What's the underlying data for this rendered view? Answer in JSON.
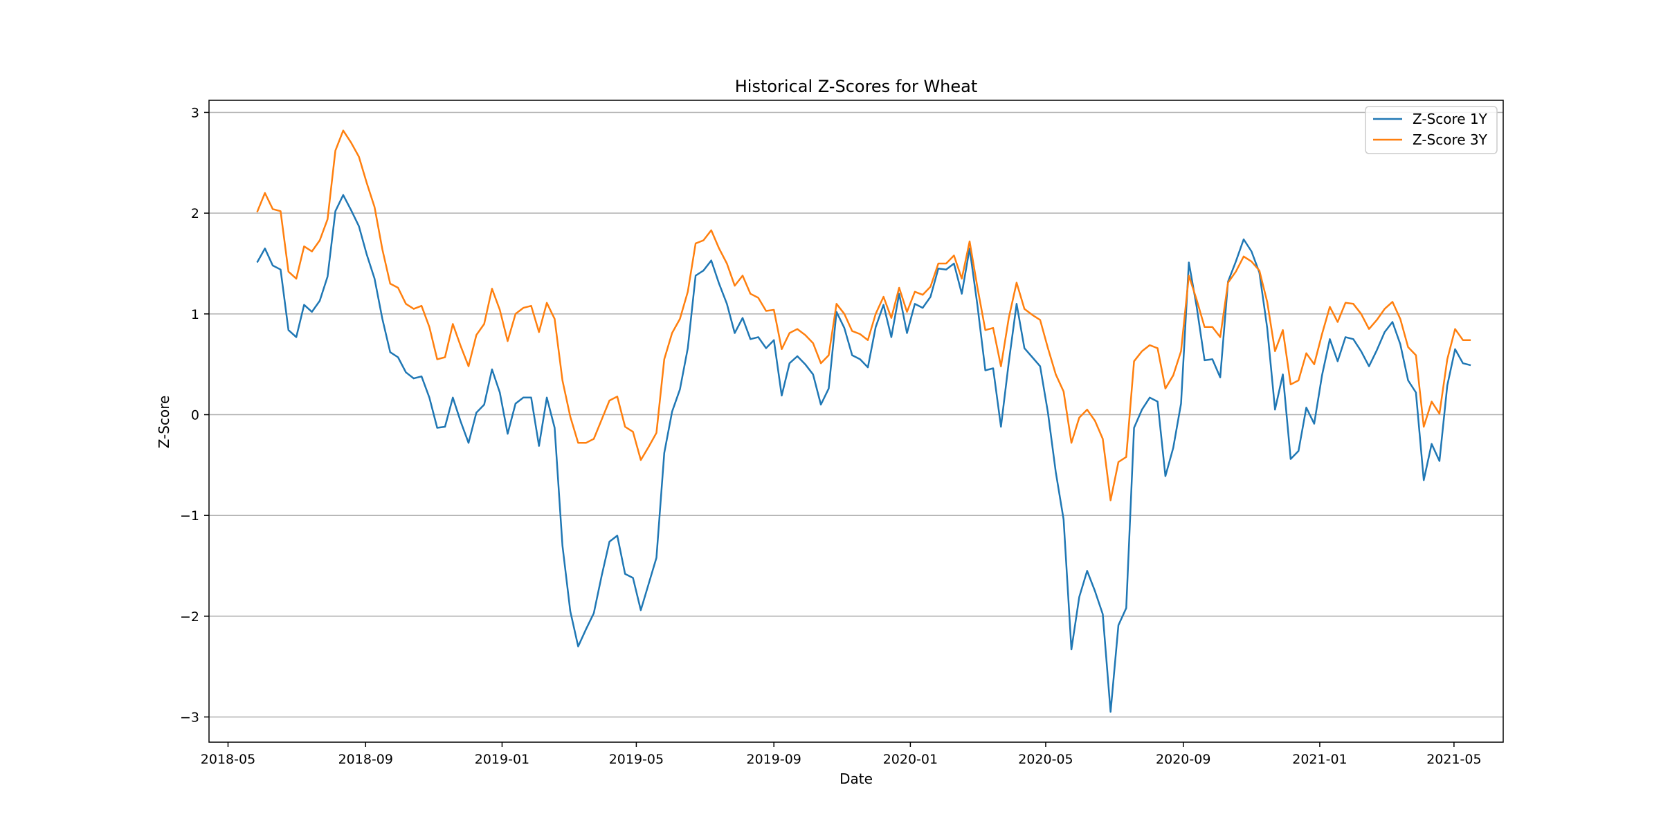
{
  "chart_data": {
    "type": "line",
    "title": "Historical Z-Scores for Wheat",
    "xlabel": "Date",
    "ylabel": "Z-Score",
    "xlim": [
      "2018-04-14",
      "2021-06-14"
    ],
    "ylim": [
      -3.25,
      3.12
    ],
    "x_ticks": [
      "2018-05",
      "2018-09",
      "2019-01",
      "2019-05",
      "2019-09",
      "2020-01",
      "2020-05",
      "2020-09",
      "2021-01",
      "2021-05"
    ],
    "y_ticks": [
      {
        "value": -3,
        "label": "−3"
      },
      {
        "value": -2,
        "label": "−2"
      },
      {
        "value": -1,
        "label": "−1"
      },
      {
        "value": 0,
        "label": "0"
      },
      {
        "value": 1,
        "label": "1"
      },
      {
        "value": 2,
        "label": "2"
      },
      {
        "value": 3,
        "label": "3"
      }
    ],
    "grid": "y",
    "legend": "top-right",
    "x_start": "2018-05-27",
    "x_step_days": 7,
    "series": [
      {
        "name": "Z-Score 1Y",
        "color": "#1f77b4",
        "values": [
          1.51,
          1.65,
          1.48,
          1.44,
          0.84,
          0.77,
          1.09,
          1.02,
          1.13,
          1.37,
          2.02,
          2.18,
          2.03,
          1.87,
          1.59,
          1.35,
          0.95,
          0.62,
          0.57,
          0.42,
          0.36,
          0.38,
          0.17,
          -0.13,
          -0.12,
          0.17,
          -0.07,
          -0.28,
          0.02,
          0.1,
          0.45,
          0.22,
          -0.19,
          0.11,
          0.17,
          0.17,
          -0.31,
          0.17,
          -0.13,
          -1.3,
          -1.95,
          -2.3,
          -2.13,
          -1.97,
          -1.6,
          -1.26,
          -1.2,
          -1.58,
          -1.62,
          -1.94,
          -1.68,
          -1.42,
          -0.38,
          0.03,
          0.25,
          0.66,
          1.38,
          1.43,
          1.53,
          1.3,
          1.1,
          0.81,
          0.96,
          0.75,
          0.77,
          0.66,
          0.74,
          0.19,
          0.51,
          0.58,
          0.5,
          0.4,
          0.1,
          0.26,
          1.02,
          0.86,
          0.59,
          0.55,
          0.47,
          0.87,
          1.09,
          0.77,
          1.2,
          0.81,
          1.1,
          1.06,
          1.17,
          1.45,
          1.44,
          1.5,
          1.2,
          1.65,
          1.08,
          0.44,
          0.46,
          -0.12,
          0.52,
          1.1,
          0.66,
          0.57,
          0.48,
          0.02,
          -0.57,
          -1.04,
          -2.33,
          -1.81,
          -1.55,
          -1.75,
          -1.98,
          -2.95,
          -2.09,
          -1.92,
          -0.13,
          0.05,
          0.17,
          0.13,
          -0.61,
          -0.33,
          0.11,
          1.51,
          1.07,
          0.54,
          0.55,
          0.37,
          1.32,
          1.52,
          1.74,
          1.62,
          1.41,
          0.86,
          0.05,
          0.4,
          -0.44,
          -0.36,
          0.07,
          -0.09,
          0.39,
          0.75,
          0.53,
          0.77,
          0.75,
          0.63,
          0.48,
          0.64,
          0.82,
          0.92,
          0.7,
          0.34,
          0.22,
          -0.65,
          -0.29,
          -0.46,
          0.29,
          0.65,
          0.51,
          0.49
        ]
      },
      {
        "name": "Z-Score 3Y",
        "color": "#ff7f0e",
        "values": [
          2.01,
          2.2,
          2.04,
          2.02,
          1.42,
          1.35,
          1.67,
          1.62,
          1.73,
          1.94,
          2.62,
          2.82,
          2.7,
          2.56,
          2.3,
          2.06,
          1.64,
          1.3,
          1.26,
          1.1,
          1.05,
          1.08,
          0.87,
          0.55,
          0.57,
          0.9,
          0.68,
          0.48,
          0.79,
          0.9,
          1.25,
          1.04,
          0.73,
          1.0,
          1.06,
          1.08,
          0.82,
          1.11,
          0.95,
          0.34,
          -0.02,
          -0.28,
          -0.28,
          -0.24,
          -0.05,
          0.14,
          0.18,
          -0.12,
          -0.17,
          -0.45,
          -0.32,
          -0.18,
          0.55,
          0.81,
          0.95,
          1.22,
          1.7,
          1.73,
          1.83,
          1.65,
          1.5,
          1.28,
          1.38,
          1.2,
          1.16,
          1.03,
          1.04,
          0.65,
          0.81,
          0.85,
          0.79,
          0.71,
          0.51,
          0.59,
          1.1,
          1.0,
          0.83,
          0.8,
          0.74,
          1.0,
          1.17,
          0.96,
          1.26,
          1.02,
          1.22,
          1.19,
          1.27,
          1.5,
          1.5,
          1.58,
          1.35,
          1.72,
          1.26,
          0.84,
          0.86,
          0.48,
          0.96,
          1.31,
          1.05,
          0.99,
          0.94,
          0.66,
          0.4,
          0.23,
          -0.28,
          -0.03,
          0.05,
          -0.06,
          -0.24,
          -0.85,
          -0.47,
          -0.42,
          0.53,
          0.63,
          0.69,
          0.66,
          0.26,
          0.39,
          0.63,
          1.38,
          1.14,
          0.87,
          0.87,
          0.77,
          1.31,
          1.42,
          1.57,
          1.52,
          1.43,
          1.12,
          0.63,
          0.84,
          0.3,
          0.34,
          0.61,
          0.5,
          0.8,
          1.07,
          0.92,
          1.11,
          1.1,
          1.0,
          0.85,
          0.94,
          1.05,
          1.12,
          0.95,
          0.67,
          0.59,
          -0.12,
          0.13,
          0.01,
          0.55,
          0.85,
          0.74,
          0.74
        ]
      }
    ]
  }
}
